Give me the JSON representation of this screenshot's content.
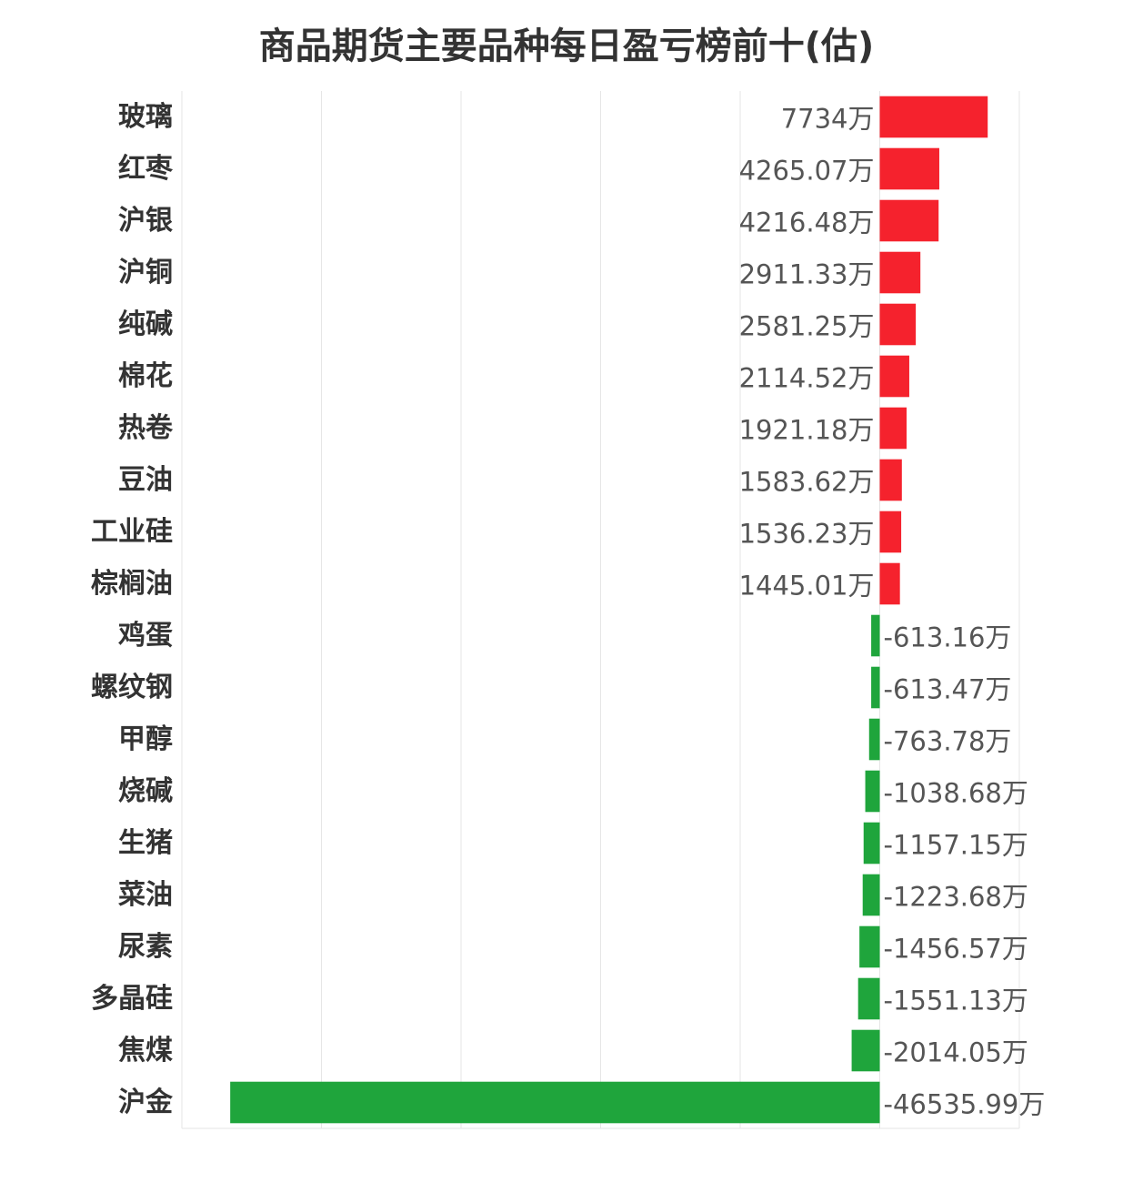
{
  "chart_data": {
    "type": "bar",
    "orientation": "horizontal",
    "title": "商品期货主要品种每日盈亏榜前十(估)",
    "unit": "万",
    "categories": [
      "玻璃",
      "红枣",
      "沪银",
      "沪铜",
      "纯碱",
      "棉花",
      "热卷",
      "豆油",
      "工业硅",
      "棕榈油",
      "鸡蛋",
      "螺纹钢",
      "甲醇",
      "烧碱",
      "生猪",
      "菜油",
      "尿素",
      "多晶硅",
      "焦煤",
      "沪金"
    ],
    "values": [
      7734,
      4265.07,
      4216.48,
      2911.33,
      2581.25,
      2114.52,
      1921.18,
      1583.62,
      1536.23,
      1445.01,
      -613.16,
      -613.47,
      -763.78,
      -1038.68,
      -1157.15,
      -1223.68,
      -1456.57,
      -1551.13,
      -2014.05,
      -46535.99
    ],
    "value_labels": [
      "7734万",
      "4265.07万",
      "4216.48万",
      "2911.33万",
      "2581.25万",
      "2114.52万",
      "1921.18万",
      "1583.62万",
      "1536.23万",
      "1445.01万",
      "-613.16万",
      "-613.47万",
      "-763.78万",
      "-1038.68万",
      "-1157.15万",
      "-1223.68万",
      "-1456.57万",
      "-1551.13万",
      "-2014.05万",
      "-46535.99万"
    ],
    "xlim": [
      -50000,
      10000
    ],
    "grid": true,
    "colors": {
      "positive": "#f5222d",
      "negative": "#1fa53c",
      "grid": "#e6e6e6"
    }
  }
}
